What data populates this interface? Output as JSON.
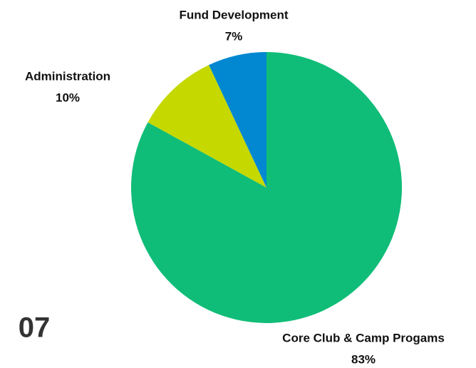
{
  "chart_data": {
    "type": "pie",
    "categories": [
      "Core Club & Camp Progams",
      "Administration",
      "Fund Development"
    ],
    "values": [
      83,
      10,
      7
    ],
    "value_labels": [
      "83%",
      "10%",
      "7%"
    ],
    "colors": [
      "#10bd78",
      "#c5d800",
      "#0288d1"
    ]
  },
  "page_number": "07"
}
